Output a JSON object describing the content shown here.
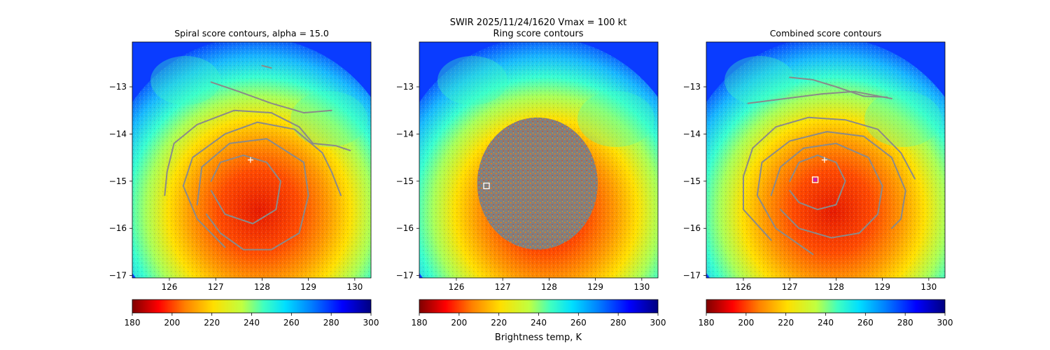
{
  "figure": {
    "suptitle_line1": "SWIR  2025/11/24/1620    Vmax = 100 kt",
    "colorbar_label": "Brightness temp, K"
  },
  "colors": {
    "contour": "#8a8a8a",
    "ring_fill": "#808080",
    "center_marker": "#ffffff",
    "combined_marker_fill": "#c81fb0"
  },
  "colormap": {
    "name": "jet_r",
    "range": [
      180,
      300
    ],
    "ticks": [
      180,
      200,
      220,
      240,
      260,
      280,
      300
    ]
  },
  "chart_data": [
    {
      "type": "heatmap",
      "title": "Spiral score contours, alpha = 15.0",
      "xlim": [
        125.2,
        130.35
      ],
      "ylim": [
        -17.05,
        -12.05
      ],
      "xticks": [
        126,
        127,
        128,
        129,
        130
      ],
      "yticks": [
        -13,
        -14,
        -15,
        -16,
        -17
      ],
      "storm_center": {
        "lon": 127.75,
        "lat": -14.55
      },
      "cold_core_center": {
        "lon": 127.8,
        "lat": -15.1
      },
      "contours": [
        {
          "name": "spiral-contour-inner",
          "points": [
            [
              126.9,
              -15.0
            ],
            [
              127.1,
              -14.6
            ],
            [
              127.6,
              -14.45
            ],
            [
              128.1,
              -14.6
            ],
            [
              128.4,
              -15.0
            ],
            [
              128.3,
              -15.6
            ],
            [
              127.8,
              -15.9
            ],
            [
              127.2,
              -15.7
            ],
            [
              126.9,
              -15.2
            ]
          ]
        },
        {
          "name": "spiral-contour-middle",
          "points": [
            [
              126.6,
              -15.5
            ],
            [
              126.7,
              -14.7
            ],
            [
              127.3,
              -14.2
            ],
            [
              128.1,
              -14.1
            ],
            [
              128.9,
              -14.6
            ],
            [
              129.0,
              -15.3
            ],
            [
              128.8,
              -16.1
            ],
            [
              128.2,
              -16.45
            ],
            [
              127.6,
              -16.45
            ],
            [
              127.1,
              -16.1
            ],
            [
              126.8,
              -15.7
            ]
          ]
        },
        {
          "name": "spiral-contour-outer",
          "points": [
            [
              127.2,
              -16.4
            ],
            [
              126.6,
              -15.8
            ],
            [
              126.3,
              -15.1
            ],
            [
              126.5,
              -14.5
            ],
            [
              127.2,
              -14.0
            ],
            [
              127.9,
              -13.75
            ],
            [
              128.7,
              -13.9
            ],
            [
              129.3,
              -14.4
            ],
            [
              129.5,
              -14.8
            ],
            [
              129.7,
              -15.3
            ]
          ]
        },
        {
          "name": "spiral-contour-band",
          "points": [
            [
              125.9,
              -15.3
            ],
            [
              125.95,
              -14.8
            ],
            [
              126.1,
              -14.2
            ],
            [
              126.6,
              -13.8
            ],
            [
              127.4,
              -13.5
            ],
            [
              128.2,
              -13.55
            ],
            [
              128.8,
              -13.85
            ],
            [
              129.1,
              -14.2
            ],
            [
              129.6,
              -14.25
            ],
            [
              129.9,
              -14.35
            ]
          ]
        },
        {
          "name": "spiral-contour-top",
          "points": [
            [
              126.9,
              -12.9
            ],
            [
              127.5,
              -13.1
            ],
            [
              128.2,
              -13.35
            ],
            [
              128.9,
              -13.55
            ],
            [
              129.5,
              -13.5
            ]
          ]
        },
        {
          "name": "spiral-contour-small",
          "points": [
            [
              128.0,
              -12.55
            ],
            [
              128.2,
              -12.6
            ]
          ]
        }
      ]
    },
    {
      "type": "heatmap",
      "title": "Ring score contours",
      "xlim": [
        125.2,
        130.35
      ],
      "ylim": [
        -17.05,
        -12.05
      ],
      "xticks": [
        126,
        127,
        128,
        129,
        130
      ],
      "yticks": [
        -13,
        -14,
        -15,
        -16,
        -17
      ],
      "ring_region": {
        "center": [
          127.75,
          -15.05
        ],
        "radius_lon": 1.3,
        "radius_lat": 1.4
      },
      "ring_center": {
        "lon": 126.65,
        "lat": -15.1
      }
    },
    {
      "type": "heatmap",
      "title": "Combined score contours",
      "xlim": [
        125.2,
        130.35
      ],
      "ylim": [
        -17.05,
        -12.05
      ],
      "xticks": [
        126,
        127,
        128,
        129,
        130
      ],
      "yticks": [
        -13,
        -14,
        -15,
        -16,
        -17
      ],
      "storm_center": {
        "lon": 127.75,
        "lat": -14.55
      },
      "combined_center": {
        "lon": 127.55,
        "lat": -14.97
      },
      "contours": [
        {
          "name": "combined-contour-inner",
          "points": [
            [
              127.0,
              -15.0
            ],
            [
              127.2,
              -14.6
            ],
            [
              127.6,
              -14.45
            ],
            [
              128.0,
              -14.6
            ],
            [
              128.2,
              -15.0
            ],
            [
              128.0,
              -15.5
            ],
            [
              127.6,
              -15.6
            ],
            [
              127.2,
              -15.45
            ],
            [
              127.0,
              -15.2
            ]
          ]
        },
        {
          "name": "combined-contour-middle",
          "points": [
            [
              126.6,
              -15.3
            ],
            [
              126.8,
              -14.7
            ],
            [
              127.3,
              -14.3
            ],
            [
              128.0,
              -14.2
            ],
            [
              128.7,
              -14.5
            ],
            [
              129.0,
              -15.1
            ],
            [
              128.9,
              -15.7
            ],
            [
              128.5,
              -16.1
            ],
            [
              127.9,
              -16.2
            ],
            [
              127.2,
              -16.0
            ],
            [
              126.8,
              -15.6
            ]
          ]
        },
        {
          "name": "combined-contour-outer",
          "points": [
            [
              127.5,
              -16.55
            ],
            [
              126.7,
              -16.0
            ],
            [
              126.3,
              -15.3
            ],
            [
              126.4,
              -14.6
            ],
            [
              127.0,
              -14.15
            ],
            [
              127.8,
              -13.95
            ],
            [
              128.6,
              -14.05
            ],
            [
              129.2,
              -14.5
            ],
            [
              129.5,
              -15.2
            ],
            [
              129.4,
              -15.8
            ],
            [
              129.2,
              -16.0
            ]
          ]
        },
        {
          "name": "combined-contour-band",
          "points": [
            [
              126.6,
              -16.25
            ],
            [
              126.0,
              -15.6
            ],
            [
              126.0,
              -14.9
            ],
            [
              126.2,
              -14.3
            ],
            [
              126.7,
              -13.85
            ],
            [
              127.4,
              -13.65
            ],
            [
              128.2,
              -13.7
            ],
            [
              128.9,
              -13.9
            ],
            [
              129.4,
              -14.4
            ],
            [
              129.7,
              -14.95
            ]
          ]
        },
        {
          "name": "combined-contour-top",
          "points": [
            [
              126.1,
              -13.35
            ],
            [
              126.9,
              -13.25
            ],
            [
              127.7,
              -13.15
            ],
            [
              128.4,
              -13.1
            ],
            [
              129.2,
              -13.25
            ]
          ]
        },
        {
          "name": "combined-contour-small",
          "points": [
            [
              127.0,
              -12.8
            ],
            [
              127.5,
              -12.85
            ],
            [
              128.0,
              -13.0
            ],
            [
              128.6,
              -13.2
            ],
            [
              129.1,
              -13.22
            ]
          ]
        }
      ]
    }
  ]
}
